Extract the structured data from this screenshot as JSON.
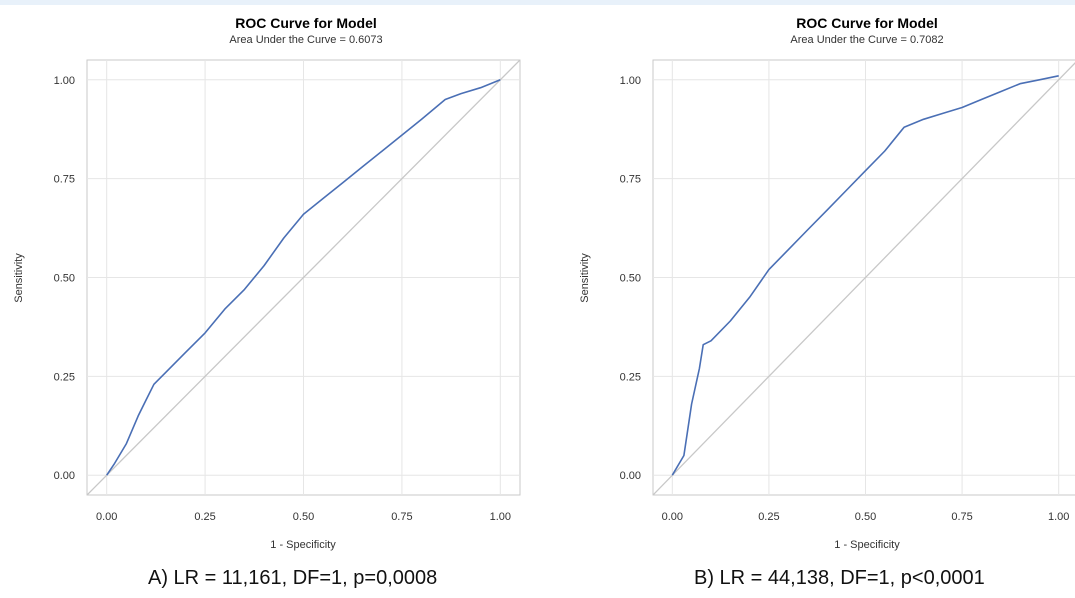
{
  "chart_data": [
    {
      "type": "line",
      "title": "ROC Curve for Model",
      "subtitle": "Area Under the Curve = 0.6073",
      "xlabel": "1 - Specificity",
      "ylabel": "Sensitivity",
      "xlim": [
        -0.05,
        1.05
      ],
      "ylim": [
        -0.05,
        1.05
      ],
      "xticks": [
        "0.00",
        "0.25",
        "0.50",
        "0.75",
        "1.00"
      ],
      "yticks": [
        "0.00",
        "0.25",
        "0.50",
        "0.75",
        "1.00"
      ],
      "grid": true,
      "series": [
        {
          "color": "#4a6fb5",
          "x": [
            0.0,
            0.02,
            0.05,
            0.08,
            0.1,
            0.12,
            0.15,
            0.2,
            0.25,
            0.3,
            0.35,
            0.4,
            0.45,
            0.5,
            0.55,
            0.6,
            0.65,
            0.7,
            0.75,
            0.8,
            0.86,
            0.9,
            0.95,
            1.0
          ],
          "y": [
            0.0,
            0.03,
            0.08,
            0.15,
            0.19,
            0.23,
            0.26,
            0.31,
            0.36,
            0.42,
            0.47,
            0.53,
            0.6,
            0.66,
            0.7,
            0.74,
            0.78,
            0.82,
            0.86,
            0.9,
            0.95,
            0.965,
            0.98,
            1.0
          ]
        },
        {
          "color": "#c8c8c8",
          "x": [
            -0.05,
            1.05
          ],
          "y": [
            -0.05,
            1.05
          ]
        }
      ],
      "caption": "A) LR = 11,161, DF=1, p=0,0008"
    },
    {
      "type": "line",
      "title": "ROC Curve for Model",
      "subtitle": "Area Under the Curve = 0.7082",
      "xlabel": "1 - Specificity",
      "ylabel": "Sensitivity",
      "xlim": [
        -0.05,
        1.05
      ],
      "ylim": [
        -0.05,
        1.05
      ],
      "xticks": [
        "0.00",
        "0.25",
        "0.50",
        "0.75",
        "1.00"
      ],
      "yticks": [
        "0.00",
        "0.25",
        "0.50",
        "0.75",
        "1.00"
      ],
      "grid": true,
      "series": [
        {
          "color": "#4a6fb5",
          "x": [
            0.0,
            0.03,
            0.05,
            0.07,
            0.08,
            0.1,
            0.15,
            0.2,
            0.25,
            0.3,
            0.35,
            0.4,
            0.45,
            0.5,
            0.55,
            0.6,
            0.65,
            0.7,
            0.75,
            0.8,
            0.85,
            0.9,
            0.95,
            1.0
          ],
          "y": [
            0.0,
            0.05,
            0.18,
            0.27,
            0.33,
            0.34,
            0.39,
            0.45,
            0.52,
            0.57,
            0.62,
            0.67,
            0.72,
            0.77,
            0.82,
            0.88,
            0.9,
            0.915,
            0.93,
            0.95,
            0.97,
            0.99,
            1.0,
            1.01
          ]
        },
        {
          "color": "#c8c8c8",
          "x": [
            -0.05,
            1.05
          ],
          "y": [
            -0.05,
            1.05
          ]
        }
      ],
      "caption": "B) LR = 44,138, DF=1, p<0,0001"
    }
  ]
}
